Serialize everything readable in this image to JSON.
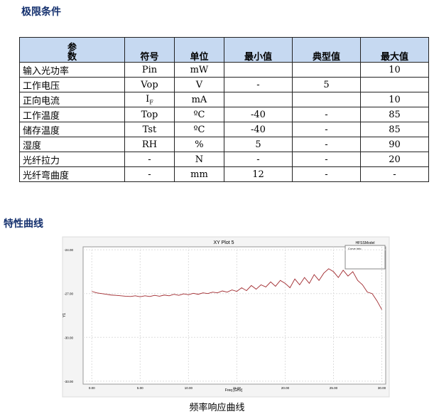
{
  "section1": {
    "title": "极限条件"
  },
  "table": {
    "header": [
      "参\n数",
      "符号",
      "单位",
      "最小值",
      "典型值",
      "最大值"
    ],
    "rows": [
      [
        "输入光功率",
        "Pin",
        "mW",
        null,
        null,
        "10"
      ],
      [
        "工作电压",
        "Vop",
        "V",
        "-",
        "5",
        null
      ],
      [
        "正向电流",
        [
          "I",
          "F"
        ],
        "mA",
        null,
        null,
        "10"
      ],
      [
        "工作温度",
        "Top",
        "ºC",
        "-40",
        "-",
        "85"
      ],
      [
        "储存温度",
        "Tst",
        "ºC",
        "-40",
        "-",
        "85"
      ],
      [
        "湿度",
        "RH",
        "%",
        "5",
        "-",
        "90"
      ],
      [
        "光纤拉力",
        "-",
        "N",
        "-",
        "-",
        "20"
      ],
      [
        "光纤弯曲度",
        "-",
        "mm",
        "12",
        "-",
        "-"
      ]
    ]
  },
  "section2": {
    "title": "特性曲线",
    "caption": "频率响应曲线"
  },
  "chart_data": {
    "type": "line",
    "title": "XY Plot 5",
    "legend_title": "HFSSModel",
    "legend_subtitle": "Curve Info",
    "x_label": "Freq [GHz]",
    "y_label": "Y1",
    "grid": true,
    "xlim": [
      -0.9,
      30.4
    ],
    "ylim": [
      -33.2,
      -23.8
    ],
    "xticks": [
      {
        "value": 0,
        "label": "0.00"
      },
      {
        "value": 5,
        "label": "5.00"
      },
      {
        "value": 10,
        "label": "10.00"
      },
      {
        "value": 15,
        "label": "15.00"
      },
      {
        "value": 20,
        "label": "20.00"
      },
      {
        "value": 25,
        "label": "25.00"
      },
      {
        "value": 30,
        "label": "30.00"
      }
    ],
    "yticks": [
      {
        "value": -24,
        "label": "-24.00"
      },
      {
        "value": -27,
        "label": "-27.00"
      },
      {
        "value": -30,
        "label": "-30.00"
      },
      {
        "value": -33,
        "label": "-33.00"
      }
    ],
    "x": [
      0,
      0.5,
      1,
      1.5,
      2,
      2.5,
      3,
      3.5,
      4,
      4.5,
      5,
      5.5,
      6,
      6.5,
      7,
      7.5,
      8,
      8.5,
      9,
      9.5,
      10,
      10.5,
      11,
      11.5,
      12,
      12.5,
      13,
      13.5,
      14,
      14.5,
      15,
      15.5,
      16,
      16.5,
      17,
      17.5,
      18,
      18.5,
      19,
      19.5,
      20,
      20.5,
      21,
      21.5,
      22,
      22.5,
      23,
      23.5,
      24,
      24.5,
      25,
      25.5,
      26,
      26.5,
      27,
      27.5,
      28,
      28.5,
      29,
      29.5,
      30
    ],
    "series": [
      {
        "color": "#a0282d",
        "values": [
          -26.85,
          -26.95,
          -27.0,
          -27.05,
          -27.1,
          -27.12,
          -27.15,
          -27.18,
          -27.2,
          -27.15,
          -27.22,
          -27.15,
          -27.2,
          -27.12,
          -27.18,
          -27.1,
          -27.15,
          -27.05,
          -27.12,
          -27.02,
          -27.08,
          -26.98,
          -27.05,
          -26.95,
          -27.0,
          -26.9,
          -26.95,
          -26.82,
          -26.9,
          -26.75,
          -26.85,
          -26.6,
          -26.8,
          -26.45,
          -26.7,
          -26.4,
          -26.55,
          -26.2,
          -26.5,
          -26.1,
          -26.3,
          -26.6,
          -26.0,
          -26.4,
          -25.9,
          -26.3,
          -25.7,
          -26.1,
          -25.6,
          -25.3,
          -25.5,
          -25.9,
          -25.4,
          -25.8,
          -25.5,
          -26.1,
          -26.4,
          -26.9,
          -27.0,
          -27.5,
          -28.1
        ]
      }
    ]
  }
}
